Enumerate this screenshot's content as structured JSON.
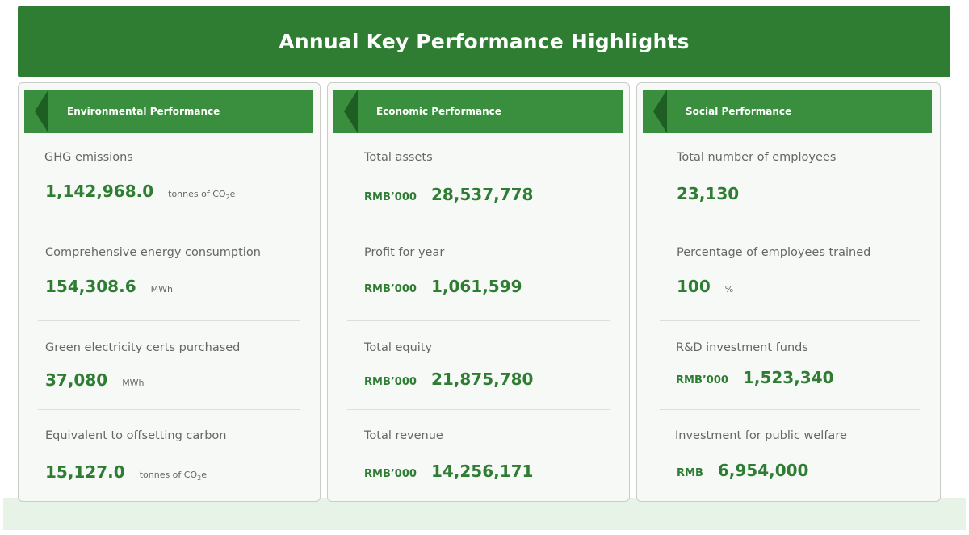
{
  "title": "Annual Key Performance Highlights",
  "colors": {
    "accent": "#2f7d32",
    "header": "#3a8f3e",
    "chevron": "#1e5e22",
    "value": "#2e7d32"
  },
  "panels": [
    {
      "title": "Environmental Performance",
      "metrics": [
        {
          "label": "GHG emissions",
          "value": "1,142,968.0",
          "unit": "tonnes of CO",
          "unit_sub": "2",
          "unit_tail": "e"
        },
        {
          "label": "Comprehensive energy consumption",
          "value": "154,308.6",
          "unit": "MWh"
        },
        {
          "label": "Green electricity certs purchased",
          "value": "37,080",
          "unit": "MWh"
        },
        {
          "label": "Equivalent to offsetting carbon",
          "value": "15,127.0",
          "unit": "tonnes of CO",
          "unit_sub": "2",
          "unit_tail": "e"
        }
      ]
    },
    {
      "title": "Economic Performance",
      "metrics": [
        {
          "label": "Total assets",
          "prefix": "RMB’000",
          "value": "28,537,778"
        },
        {
          "label": "Profit for year",
          "prefix": "RMB’000",
          "value": "1,061,599"
        },
        {
          "label": "Total equity",
          "prefix": "RMB’000",
          "value": "21,875,780"
        },
        {
          "label": "Total revenue",
          "prefix": "RMB’000",
          "value": "14,256,171"
        }
      ]
    },
    {
      "title": "Social Performance",
      "metrics": [
        {
          "label": "Total number of employees",
          "value": "23,130"
        },
        {
          "label": "Percentage of employees trained",
          "value": "100",
          "unit": "%"
        },
        {
          "label": "R&D investment funds",
          "prefix": "RMB’000",
          "value": "1,523,340"
        },
        {
          "label": "Investment for public welfare",
          "prefix": "RMB",
          "value": "6,954,000"
        }
      ]
    }
  ]
}
